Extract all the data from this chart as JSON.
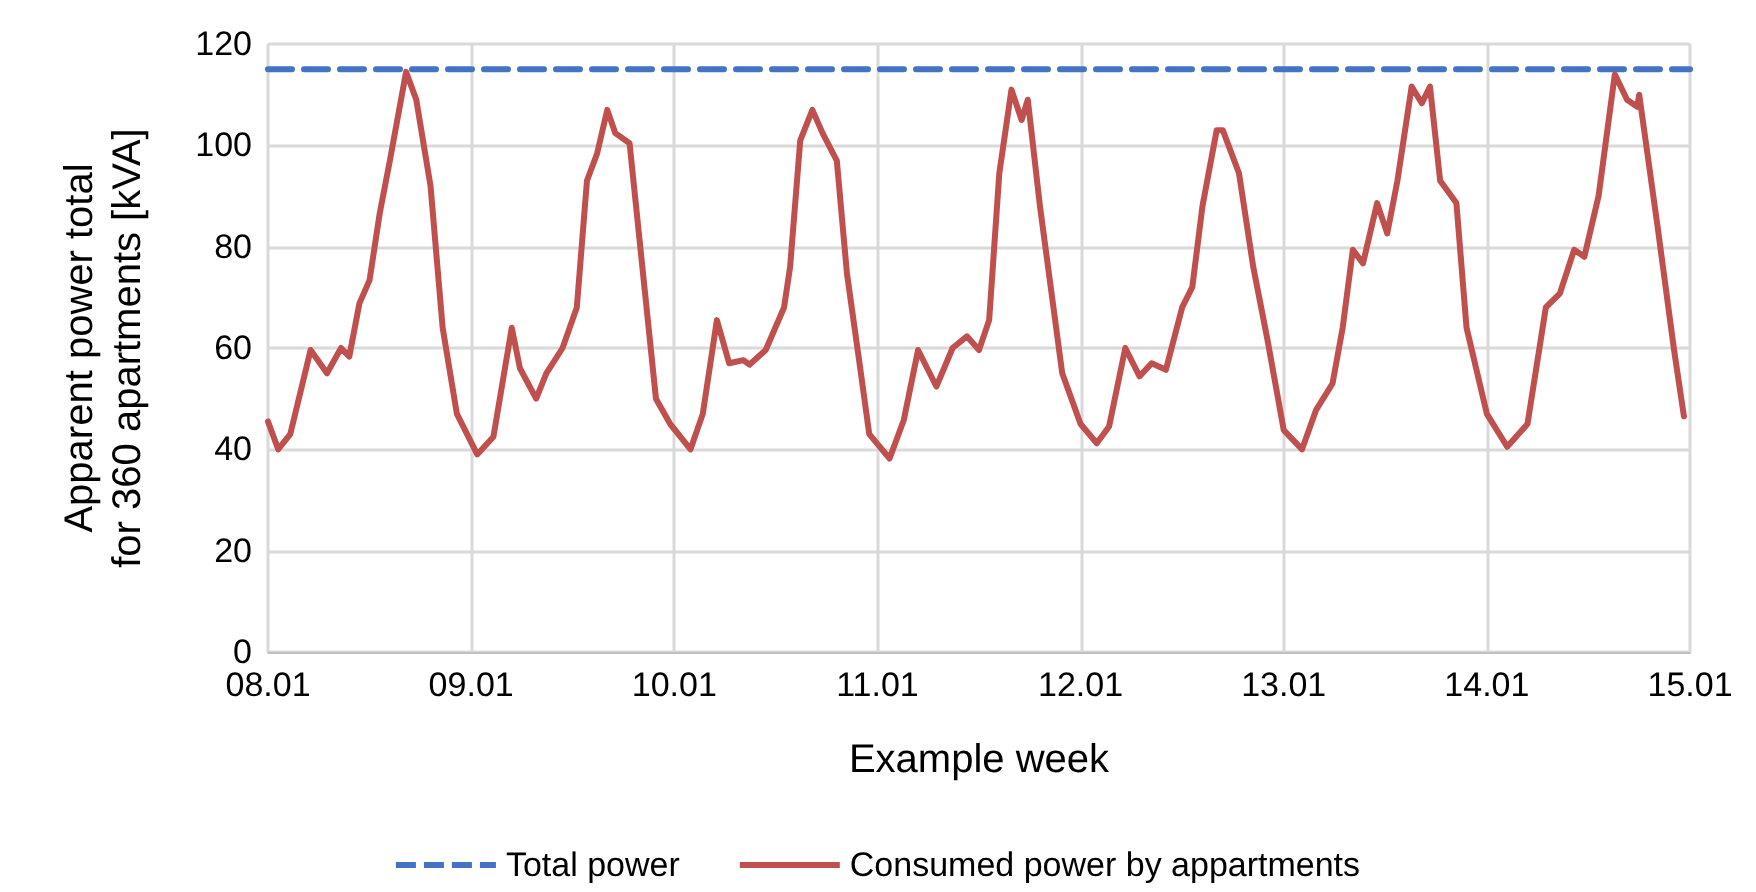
{
  "chart_data": {
    "type": "line",
    "xlabel": "Example week",
    "ylabel": "Apparent power total\nfor 360 apartments [kVA]",
    "xlim": [
      "--01-08",
      "--01-15"
    ],
    "xticks": [
      {
        "value": "--01-08",
        "label": "08.01"
      },
      {
        "value": "--01-09",
        "label": "09.01"
      },
      {
        "value": "--01-10",
        "label": "10.01"
      },
      {
        "value": "--01-11",
        "label": "11.01"
      },
      {
        "value": "--01-12",
        "label": "12.01"
      },
      {
        "value": "--01-13",
        "label": "13.01"
      },
      {
        "value": "--01-14",
        "label": "14.01"
      },
      {
        "value": "--01-15",
        "label": "15.01"
      }
    ],
    "ylim": [
      0,
      120
    ],
    "yticks": [
      0,
      20,
      40,
      60,
      80,
      100,
      120
    ],
    "grid": true,
    "legend": "bottom",
    "marker": "none",
    "series": [
      {
        "name": "Total power",
        "color": "#4472c4",
        "line_style": "dashed",
        "x": [
          "--01-08",
          "--01-15"
        ],
        "values": [
          115,
          115
        ]
      },
      {
        "name": "Consumed power by appartments",
        "color": "#c0504d",
        "line_style": "solid",
        "x": [
          "--01-08T00:00",
          "--01-08T01:12",
          "--01-08T02:38",
          "--01-08T05:02",
          "--01-08T06:58",
          "--01-08T08:38",
          "--01-08T09:36",
          "--01-08T10:48",
          "--01-08T12:00",
          "--01-08T13:12",
          "--01-08T14:24",
          "--01-08T16:19",
          "--01-08T17:31",
          "--01-08T19:12",
          "--01-08T20:38",
          "--01-08T22:19",
          "--01-09T00:43",
          "--01-09T02:38",
          "--01-09T04:48",
          "--01-09T05:46",
          "--01-09T07:41",
          "--01-09T08:53",
          "--01-09T10:48",
          "--01-09T12:29",
          "--01-09T13:41",
          "--01-09T14:53",
          "--01-09T16:05",
          "--01-09T17:02",
          "--01-09T18:43",
          "--01-09T19:55",
          "--01-09T21:50",
          "--01-09T23:31",
          "--01-10T01:55",
          "--01-10T03:22",
          "--01-10T05:02",
          "--01-10T06:29",
          "--01-10T08:10",
          "--01-10T08:53",
          "--01-10T10:48",
          "--01-10T12:58",
          "--01-10T13:41",
          "--01-10T14:53",
          "--01-10T16:19",
          "--01-10T17:31",
          "--01-10T19:12",
          "--01-10T20:24",
          "--01-10T21:50",
          "--01-10T23:02",
          "--01-11T01:26",
          "--01-11T03:07",
          "--01-11T04:48",
          "--01-11T06:58",
          "--01-11T08:53",
          "--01-11T10:34",
          "--01-11T12:00",
          "--01-11T13:12",
          "--01-11T14:24",
          "--01-11T15:50",
          "--01-11T17:02",
          "--01-11T17:46",
          "--01-11T19:12",
          "--01-11T21:50",
          "--01-12T00:00",
          "--01-12T01:55",
          "--01-12T03:22",
          "--01-12T05:17",
          "--01-12T06:58",
          "--01-12T08:24",
          "--01-12T10:05",
          "--01-12T12:00",
          "--01-12T13:12",
          "--01-12T14:24",
          "--01-12T16:05",
          "--01-12T16:48",
          "--01-12T18:43",
          "--01-12T20:24",
          "--01-12T22:05",
          "--01-13T00:00",
          "--01-13T02:10",
          "--01-13T03:50",
          "--01-13T05:46",
          "--01-13T06:58",
          "--01-13T08:10",
          "--01-13T09:22",
          "--01-13T11:02",
          "--01-13T12:14",
          "--01-13T13:26",
          "--01-13T15:07",
          "--01-13T16:19",
          "--01-13T17:17",
          "--01-13T18:29",
          "--01-13T20:24",
          "--01-13T21:36",
          "--01-14T00:00",
          "--01-14T02:24",
          "--01-14T04:48",
          "--01-14T06:58",
          "--01-14T08:38",
          "--01-14T10:19",
          "--01-14T11:31",
          "--01-14T13:12",
          "--01-14T15:07",
          "--01-14T16:34",
          "--01-14T17:46",
          "--01-14T18:00",
          "--01-14T20:10",
          "--01-14T22:05",
          "--01-14T23:17"
        ],
        "values": [
          45.5,
          40,
          43,
          59.6,
          55,
          60,
          58.3,
          68.8,
          73.4,
          86.6,
          97,
          114.5,
          109,
          92,
          64,
          47,
          39,
          42.5,
          64,
          56,
          50,
          55,
          60,
          68,
          93,
          98.4,
          107,
          102.4,
          100.4,
          81,
          50,
          45,
          40,
          47,
          65.5,
          57,
          57.6,
          56.7,
          59.6,
          68,
          76,
          101,
          107,
          102.4,
          97,
          74.7,
          57.6,
          43,
          38.2,
          45.8,
          59.6,
          52.4,
          60,
          62.3,
          59.6,
          65.5,
          94.5,
          111,
          105,
          109,
          88,
          55,
          45,
          41.2,
          44.5,
          60,
          54.4,
          57,
          55.7,
          68,
          72,
          88,
          103,
          103,
          94.5,
          76,
          61.6,
          43.8,
          40,
          47.8,
          53,
          64,
          79.4,
          76.7,
          88.6,
          82.6,
          93,
          111.6,
          108.3,
          111.6,
          93,
          88.6,
          64,
          47,
          40.5,
          45,
          68,
          70.8,
          79.4,
          78,
          90,
          114,
          109,
          107.6,
          110,
          84,
          60,
          46.5
        ]
      }
    ]
  }
}
